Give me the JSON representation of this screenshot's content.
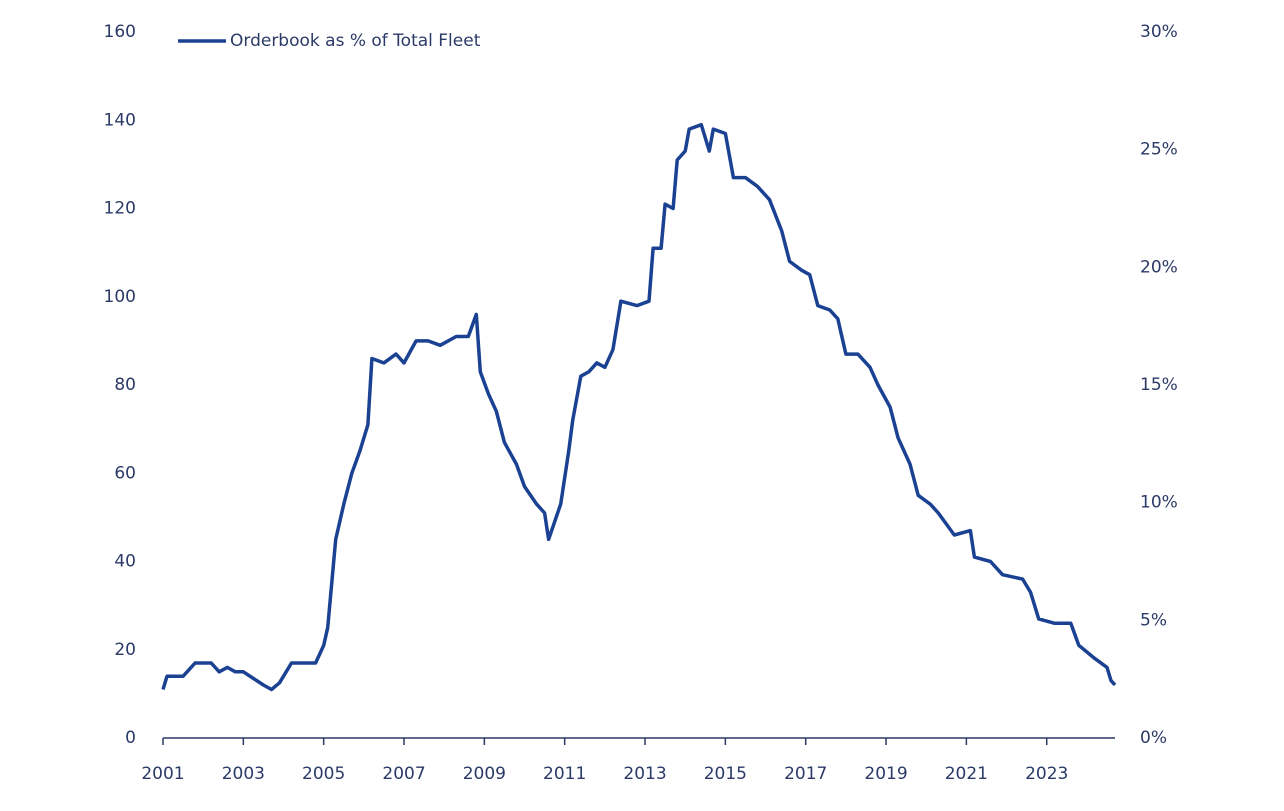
{
  "chart_data": {
    "type": "line",
    "x": [
      2001.0,
      2001.1,
      2001.5,
      2001.8,
      2002.2,
      2002.4,
      2002.6,
      2002.8,
      2003.0,
      2003.5,
      2003.7,
      2003.9,
      2004.2,
      2004.4,
      2004.8,
      2005.0,
      2005.1,
      2005.3,
      2005.5,
      2005.7,
      2005.9,
      2006.1,
      2006.2,
      2006.5,
      2006.8,
      2007.0,
      2007.3,
      2007.6,
      2007.9,
      2008.3,
      2008.6,
      2008.8,
      2008.9,
      2009.1,
      2009.3,
      2009.5,
      2009.8,
      2010.0,
      2010.3,
      2010.5,
      2010.6,
      2010.9,
      2011.1,
      2011.2,
      2011.4,
      2011.6,
      2011.8,
      2012.0,
      2012.2,
      2012.4,
      2012.8,
      2013.1,
      2013.2,
      2013.4,
      2013.5,
      2013.7,
      2013.8,
      2014.0,
      2014.1,
      2014.4,
      2014.6,
      2014.7,
      2015.0,
      2015.2,
      2015.5,
      2015.8,
      2016.1,
      2016.4,
      2016.6,
      2016.9,
      2017.1,
      2017.3,
      2017.6,
      2017.8,
      2018.0,
      2018.3,
      2018.6,
      2018.8,
      2019.1,
      2019.3,
      2019.6,
      2019.8,
      2020.1,
      2020.3,
      2020.7,
      2021.1,
      2021.2,
      2021.6,
      2021.9,
      2022.4,
      2022.6,
      2022.8,
      2023.2,
      2023.6,
      2023.8,
      2024.2,
      2024.5,
      2024.6,
      2024.7
    ],
    "series": [
      {
        "name": "Orderbook as % of Total Fleet",
        "color": "#1b4193",
        "values": [
          11,
          14,
          14,
          17,
          17,
          15,
          16,
          15,
          15,
          12,
          11,
          12.5,
          17,
          17,
          17,
          21,
          25,
          45,
          53,
          60,
          65,
          71,
          86,
          85,
          87,
          85,
          90,
          90,
          89,
          91,
          91,
          96,
          83,
          78,
          74,
          67,
          62,
          57,
          53,
          51,
          45,
          53,
          65,
          72,
          82,
          83,
          85,
          84,
          88,
          99,
          98,
          99,
          111,
          111,
          121,
          120,
          131,
          133,
          138,
          139,
          133,
          138,
          137,
          127,
          127,
          125,
          122,
          115,
          108,
          106,
          105,
          98,
          97,
          95,
          87,
          87,
          84,
          80,
          75,
          68,
          62,
          55,
          53,
          51,
          46,
          47,
          41,
          40,
          37,
          36,
          33,
          27,
          26,
          26,
          21,
          18,
          16,
          13,
          12
        ]
      }
    ],
    "xlim": [
      2001,
      2024.7
    ],
    "xticks": [
      2001,
      2003,
      2005,
      2007,
      2009,
      2011,
      2013,
      2015,
      2017,
      2019,
      2021,
      2023
    ],
    "ylim": [
      0,
      160
    ],
    "yticks": [
      0,
      20,
      40,
      60,
      80,
      100,
      120,
      140,
      160
    ],
    "y2lim": [
      0,
      30
    ],
    "y2ticks": [
      {
        "value": 0,
        "label": "0%"
      },
      {
        "value": 5,
        "label": "5%"
      },
      {
        "value": 10,
        "label": "10%"
      },
      {
        "value": 15,
        "label": "15%"
      },
      {
        "value": 20,
        "label": "20%"
      },
      {
        "value": 25,
        "label": "25%"
      },
      {
        "value": 30,
        "label": "30%"
      }
    ],
    "grid": false,
    "legend": "upper left"
  }
}
